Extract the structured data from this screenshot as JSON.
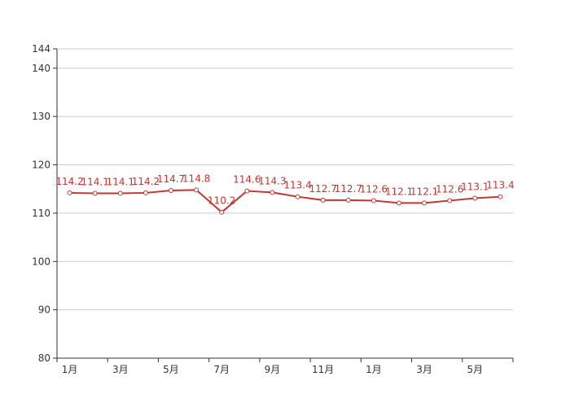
{
  "chart_data": {
    "type": "line",
    "title": "",
    "xlabel": "",
    "ylabel": "",
    "ylim": [
      80,
      144
    ],
    "y_ticks": [
      80,
      90,
      100,
      110,
      120,
      130,
      140,
      144
    ],
    "x_tick_labels": [
      "1月",
      "3月",
      "5月",
      "7月",
      "9月",
      "11月",
      "1月",
      "3月",
      "5月"
    ],
    "x": [
      1,
      2,
      3,
      4,
      5,
      6,
      7,
      8,
      9,
      10,
      11,
      12,
      13,
      14,
      15,
      16,
      17,
      18
    ],
    "series": [
      {
        "values": [
          114.2,
          114.1,
          114.1,
          114.2,
          114.7,
          114.8,
          110.2,
          114.6,
          114.3,
          113.4,
          112.7,
          112.7,
          112.6,
          112.1,
          112.1,
          112.6,
          113.1,
          113.4
        ],
        "color": "#c23531"
      }
    ],
    "grid": true
  }
}
